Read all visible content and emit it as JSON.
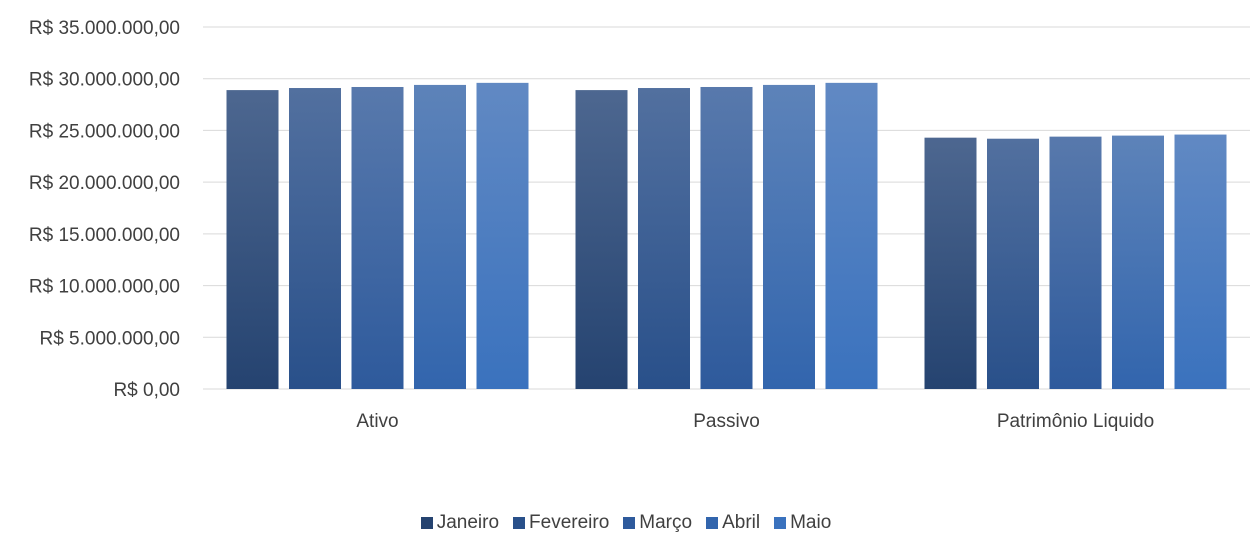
{
  "chart_data": {
    "type": "bar",
    "title": "",
    "xlabel": "",
    "ylabel": "",
    "categories": [
      "Ativo",
      "Passivo",
      "Patrimônio Liquido"
    ],
    "series": [
      {
        "name": "Janeiro",
        "values": [
          28900000,
          28900000,
          24300000
        ]
      },
      {
        "name": "Fevereiro",
        "values": [
          29100000,
          29100000,
          24200000
        ]
      },
      {
        "name": "Março",
        "values": [
          29200000,
          29200000,
          24400000
        ]
      },
      {
        "name": "Abril",
        "values": [
          29400000,
          29400000,
          24500000
        ]
      },
      {
        "name": "Maio",
        "values": [
          29600000,
          29600000,
          24600000
        ]
      }
    ],
    "ylim": [
      0,
      35000000
    ],
    "yticks": [
      0,
      5000000,
      10000000,
      15000000,
      20000000,
      25000000,
      30000000,
      35000000
    ],
    "ytick_labels": [
      "R$ 0,00",
      "R$ 5.000.000,00",
      "R$ 10.000.000,00",
      "R$ 15.000.000,00",
      "R$ 20.000.000,00",
      "R$ 25.000.000,00",
      "R$ 30.000.000,00",
      "R$ 35.000.000,00"
    ],
    "grid": true,
    "legend_position": "bottom",
    "colors": {
      "Janeiro": {
        "bottom": "#254370",
        "top": "#4d6790"
      },
      "Fevereiro": {
        "bottom": "#29508a",
        "top": "#52709f"
      },
      "Março": {
        "bottom": "#2e5a9c",
        "top": "#5879ac"
      },
      "Abril": {
        "bottom": "#3265ad",
        "top": "#5d83b9"
      },
      "Maio": {
        "bottom": "#3a72be",
        "top": "#6189c3"
      }
    },
    "gridline_color": "#d9d9d9",
    "text_color": "#404040"
  }
}
